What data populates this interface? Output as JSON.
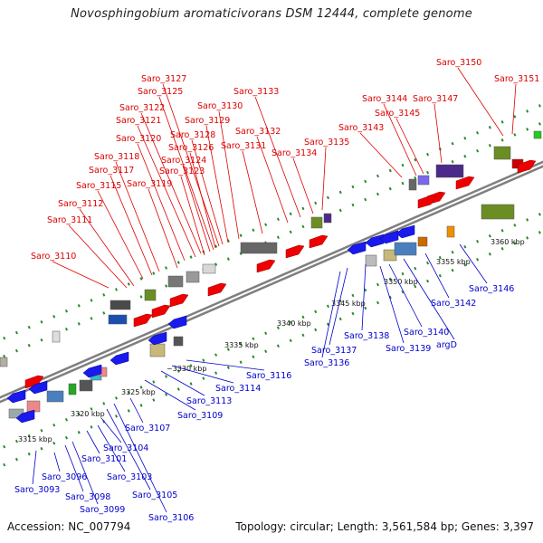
{
  "title": "Novosphingobium aromaticivorans DSM 12444, complete genome",
  "accession": "Accession: NC_007794",
  "topology": "Topology: circular; Length: 3,561,584 bp; Genes: 3,397",
  "colors": {
    "forward_label": "#dd0000",
    "reverse_label": "#0000cc",
    "backbone": "#7f7f7f",
    "tick": "#2a8a2a"
  },
  "kbp_labels": [
    "3315 kbp",
    "3320 kbp",
    "3325 kbp",
    "~3330 kbp",
    "3335 kbp",
    "3340 kbp",
    "3345 kbp",
    "3350 kbp",
    "3355 kbp",
    "3360 kbp"
  ],
  "forward_genes": [
    "Saro_3110",
    "Saro_3111",
    "Saro_3112",
    "Saro_3115",
    "Saro_3117",
    "Saro_3118",
    "Saro_3119",
    "Saro_3120",
    "Saro_3121",
    "Saro_3122",
    "Saro_3123",
    "Saro_3124",
    "Saro_3125",
    "Saro_3126",
    "Saro_3127",
    "Saro_3128",
    "Saro_3129",
    "Saro_3130",
    "Saro_3131",
    "Saro_3132",
    "Saro_3133",
    "Saro_3134",
    "Saro_3135",
    "Saro_3143",
    "Saro_3144",
    "Saro_3145",
    "Saro_3147",
    "Saro_3150",
    "Saro_3151"
  ],
  "reverse_genes": [
    "Saro_3093",
    "Saro_3096",
    "Saro_3098",
    "Saro_3099",
    "Saro_3101",
    "Saro_3103",
    "Saro_3104",
    "Saro_3105",
    "Saro_3106",
    "Saro_3107",
    "Saro_3109",
    "Saro_3113",
    "Saro_3114",
    "Saro_3116",
    "Saro_3136",
    "Saro_3137",
    "Saro_3138",
    "Saro_3139",
    "Saro_3140",
    "argD",
    "Saro_3142",
    "Saro_3146"
  ]
}
